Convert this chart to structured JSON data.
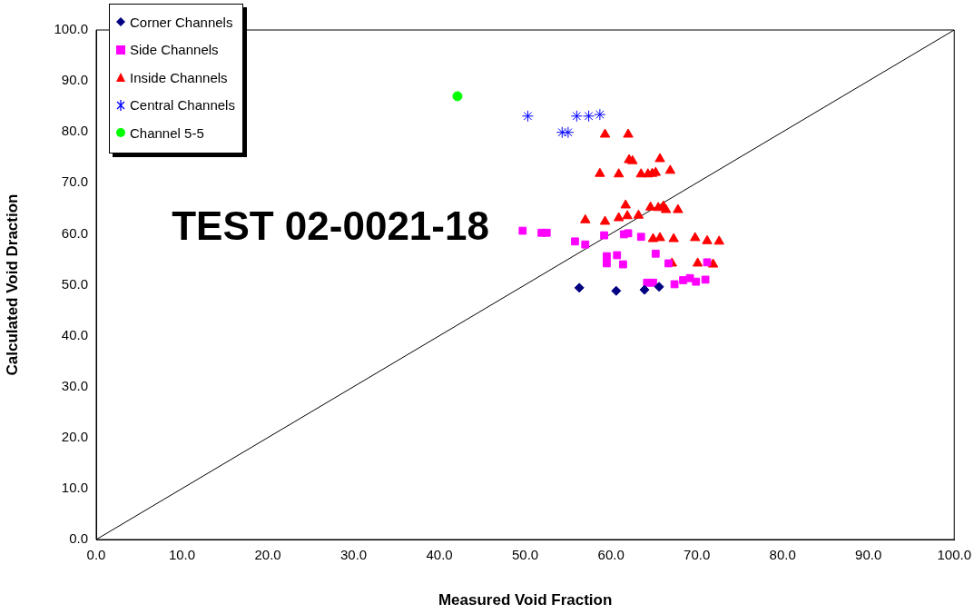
{
  "chart_data": {
    "type": "scatter",
    "xlabel": "Measured Void Fraction",
    "ylabel": "Calculated Void Draction",
    "annotations": [
      "TEST 02-0021-18"
    ],
    "xlim": [
      0,
      100
    ],
    "ylim": [
      0,
      100
    ],
    "xticks": [
      {
        "value": 0,
        "label": "0.0"
      },
      {
        "value": 10,
        "label": "10.0"
      },
      {
        "value": 20,
        "label": "20.0"
      },
      {
        "value": 30,
        "label": "30.0"
      },
      {
        "value": 40,
        "label": "40.0"
      },
      {
        "value": 50,
        "label": "50.0"
      },
      {
        "value": 60,
        "label": "60.0"
      },
      {
        "value": 70,
        "label": "70.0"
      },
      {
        "value": 80,
        "label": "80.0"
      },
      {
        "value": 90,
        "label": "90.0"
      },
      {
        "value": 100,
        "label": "100.0"
      }
    ],
    "yticks": [
      {
        "value": 0,
        "label": "0.0"
      },
      {
        "value": 10,
        "label": "10.0"
      },
      {
        "value": 20,
        "label": "20.0"
      },
      {
        "value": 30,
        "label": "30.0"
      },
      {
        "value": 40,
        "label": "40.0"
      },
      {
        "value": 50,
        "label": "50.0"
      },
      {
        "value": 60,
        "label": "60.0"
      },
      {
        "value": 70,
        "label": "70.0"
      },
      {
        "value": 80,
        "label": "80.0"
      },
      {
        "value": 90,
        "label": "90.0"
      },
      {
        "value": 100,
        "label": "100.0"
      }
    ],
    "grid": false,
    "legend": "top left",
    "series": [
      {
        "name": "Corner Channels",
        "color": "#000080",
        "marker": "diamond",
        "x": [
          56.3,
          60.6,
          63.9,
          65.6
        ],
        "values": [
          49.4,
          48.8,
          49.0,
          49.6
        ]
      },
      {
        "name": "Side Channels",
        "color": "#ff00ff",
        "marker": "square",
        "x": [
          49.7,
          51.9,
          52.5,
          55.8,
          57.0,
          59.2,
          59.5,
          59.5,
          60.7,
          61.4,
          61.5,
          62.0,
          63.5,
          65.2,
          64.2,
          64.9,
          66.7,
          67.4,
          68.4,
          69.2,
          69.9,
          71.0,
          71.2
        ],
        "values": [
          60.6,
          60.2,
          60.2,
          58.5,
          57.9,
          59.7,
          55.6,
          54.2,
          55.8,
          54.0,
          59.9,
          60.1,
          59.4,
          56.1,
          50.4,
          50.4,
          54.2,
          50.1,
          50.9,
          51.3,
          50.6,
          51.0,
          54.4
        ]
      },
      {
        "name": "Inside Channels",
        "color": "#ff0000",
        "marker": "triangle",
        "x": [
          59.3,
          62.0,
          58.7,
          60.9,
          62.1,
          62.5,
          63.5,
          64.3,
          64.8,
          65.2,
          65.7,
          66.9,
          57.0,
          59.3,
          60.9,
          61.7,
          61.9,
          63.2,
          64.6,
          65.5,
          66.1,
          66.4,
          67.8,
          64.9,
          65.7,
          67.3,
          69.8,
          71.2,
          72.6,
          67.1,
          70.1,
          71.9
        ],
        "values": [
          79.5,
          79.5,
          71.8,
          71.7,
          74.5,
          74.3,
          71.7,
          71.7,
          71.8,
          72.0,
          74.7,
          72.4,
          62.7,
          62.4,
          63.1,
          65.6,
          63.5,
          63.6,
          65.2,
          65.1,
          65.4,
          64.7,
          64.7,
          59.0,
          59.2,
          59.0,
          59.2,
          58.6,
          58.5,
          54.2,
          54.2,
          54.0
        ]
      },
      {
        "name": "Central Channels",
        "color": "#0000ff",
        "marker": "cross",
        "x": [
          50.3,
          54.3,
          55.0,
          56.0,
          57.4,
          58.7
        ],
        "values": [
          83.1,
          79.9,
          79.9,
          83.1,
          83.1,
          83.4
        ]
      },
      {
        "name": "Channel 5-5",
        "color": "#00ff00",
        "marker": "circle",
        "x": [
          42.1
        ],
        "values": [
          87.0
        ]
      },
      {
        "type": "line",
        "color": "#000000",
        "marker": "none",
        "x": [
          0,
          100
        ],
        "values": [
          0,
          100
        ]
      }
    ]
  }
}
